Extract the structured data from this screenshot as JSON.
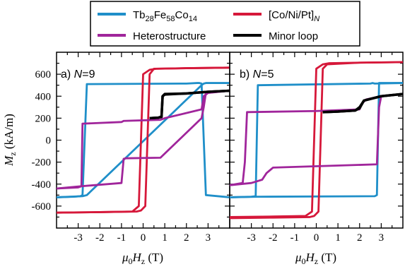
{
  "chart_data": [
    {
      "type": "line",
      "panel_label": "a) N=9",
      "xlabel": "μ0Hz (T)",
      "ylabel": "Mz (kA/m)",
      "xlim": [
        -4,
        4
      ],
      "ylim": [
        -800,
        800
      ],
      "xticks": [
        -3,
        -2,
        -1,
        0,
        1,
        2,
        3
      ],
      "yticks": [
        -600,
        -400,
        -200,
        0,
        200,
        400,
        600
      ],
      "series": [
        {
          "name": "Tb28Fe58Co14",
          "color": "#1f8fc9",
          "x": [
            -4,
            -3.2,
            -2.9,
            -2.8,
            -2.6,
            2.0,
            2.5,
            2.6,
            2.7,
            2.9,
            4
          ],
          "y": [
            -520,
            -515,
            -510,
            -500,
            510,
            515,
            520,
            520,
            515,
            -500,
            -520
          ],
          "x2": [
            4,
            2.9,
            2.8,
            2.7,
            -2.6,
            -2.7,
            -2.8,
            -4
          ],
          "y2": [
            520,
            520,
            515,
            500,
            -500,
            -505,
            -510,
            -520
          ]
        },
        {
          "name": "[Co/Ni/Pt]N",
          "color": "#d6183a",
          "x": [
            -4,
            -2,
            -0.5,
            -0.2,
            0.0,
            0.3,
            0.6,
            2,
            4
          ],
          "y": [
            -660,
            -655,
            -650,
            -600,
            600,
            640,
            650,
            655,
            660
          ],
          "x2": [
            4,
            2,
            0.5,
            0.3,
            0.1,
            -0.1,
            -0.3,
            -2,
            -4
          ],
          "y2": [
            660,
            655,
            650,
            600,
            -600,
            -640,
            -650,
            -655,
            -660
          ]
        },
        {
          "name": "Heterostructure",
          "color": "#a0259b",
          "x": [
            -4,
            -3.0,
            -2.85,
            -2.8,
            -1.0,
            -0.9,
            0.8,
            1.0,
            2.7,
            2.8,
            3.0,
            4
          ],
          "y": [
            -440,
            -430,
            -420,
            150,
            165,
            175,
            185,
            200,
            280,
            400,
            430,
            450
          ],
          "x2": [
            4,
            2.9,
            2.8,
            2.7,
            0.8,
            -0.8,
            -0.9,
            -1.0,
            -2.9,
            -4
          ],
          "y2": [
            450,
            430,
            300,
            200,
            -160,
            -165,
            -170,
            -390,
            -420,
            -440
          ]
        },
        {
          "name": "Minor loop",
          "color": "#000000",
          "x": [
            0.3,
            0.7,
            0.85,
            0.9,
            1.0,
            2.0,
            3.0,
            4
          ],
          "y": [
            200,
            205,
            210,
            400,
            420,
            425,
            440,
            450
          ],
          "x2": [
            4,
            3,
            2,
            1.0,
            0.9,
            0.85,
            0.7,
            0.3
          ],
          "y2": [
            450,
            440,
            425,
            415,
            400,
            215,
            205,
            200
          ]
        }
      ]
    },
    {
      "type": "line",
      "panel_label": "b) N=5",
      "xlabel": "μ0Hz (T)",
      "ylabel": "",
      "xlim": [
        -4,
        4
      ],
      "ylim": [
        -800,
        800
      ],
      "xticks": [
        -3,
        -2,
        -1,
        0,
        1,
        2,
        3
      ],
      "yticks": [
        -600,
        -400,
        -200,
        0,
        200,
        400,
        600
      ],
      "series": [
        {
          "name": "Tb28Fe58Co14",
          "color": "#1f8fc9",
          "x": [
            -4,
            -3.0,
            -2.8,
            -2.7,
            2.5,
            2.6,
            2.7,
            4
          ],
          "y": [
            -520,
            -515,
            -510,
            500,
            515,
            520,
            515,
            520
          ],
          "x2": [
            4,
            2.9,
            2.8,
            2.7,
            -2.6,
            -2.7,
            -4
          ],
          "y2": [
            520,
            520,
            -500,
            -510,
            -515,
            -515,
            -520
          ]
        },
        {
          "name": "[Co/Ni/Pt]N",
          "color": "#d6183a",
          "x": [
            -4,
            -2,
            -0.5,
            -0.2,
            0.0,
            0.3,
            0.6,
            2,
            4
          ],
          "y": [
            -700,
            -695,
            -690,
            -650,
            650,
            690,
            700,
            705,
            710
          ],
          "x2": [
            4,
            2,
            0.5,
            0.3,
            0.1,
            -0.1,
            -0.3,
            -2,
            -4
          ],
          "y2": [
            710,
            705,
            690,
            650,
            -650,
            -690,
            -700,
            -705,
            -710
          ]
        },
        {
          "name": "Heterostructure",
          "color": "#a0259b",
          "x": [
            -4,
            -3.4,
            -3.3,
            -3.2,
            0.0,
            2.0,
            2.1,
            2.3,
            3.0,
            4
          ],
          "y": [
            -410,
            -390,
            -200,
            255,
            265,
            280,
            330,
            370,
            400,
            420
          ],
          "x2": [
            4,
            3.0,
            2.9,
            2.8,
            -2.0,
            -2.3,
            -2.5,
            -3.0,
            -4
          ],
          "y2": [
            420,
            400,
            300,
            -220,
            -250,
            -300,
            -360,
            -390,
            -410
          ]
        },
        {
          "name": "Minor loop",
          "color": "#000000",
          "x": [
            0.3,
            1.0,
            1.8,
            2.0,
            2.2,
            3.0,
            4
          ],
          "y": [
            255,
            260,
            270,
            300,
            360,
            400,
            420
          ],
          "x2": [
            4,
            3.0,
            2.2,
            2.0,
            1.8,
            1.0,
            0.3
          ],
          "y2": [
            420,
            400,
            360,
            290,
            270,
            260,
            255
          ]
        }
      ]
    }
  ],
  "legend": {
    "entries": [
      {
        "label": "Tb28Fe58Co14",
        "color": "#1f8fc9"
      },
      {
        "label": "[Co/Ni/Pt]N",
        "color": "#d6183a"
      },
      {
        "label": "Heterostructure",
        "color": "#a0259b"
      },
      {
        "label": "Minor loop",
        "color": "#000000"
      }
    ]
  }
}
